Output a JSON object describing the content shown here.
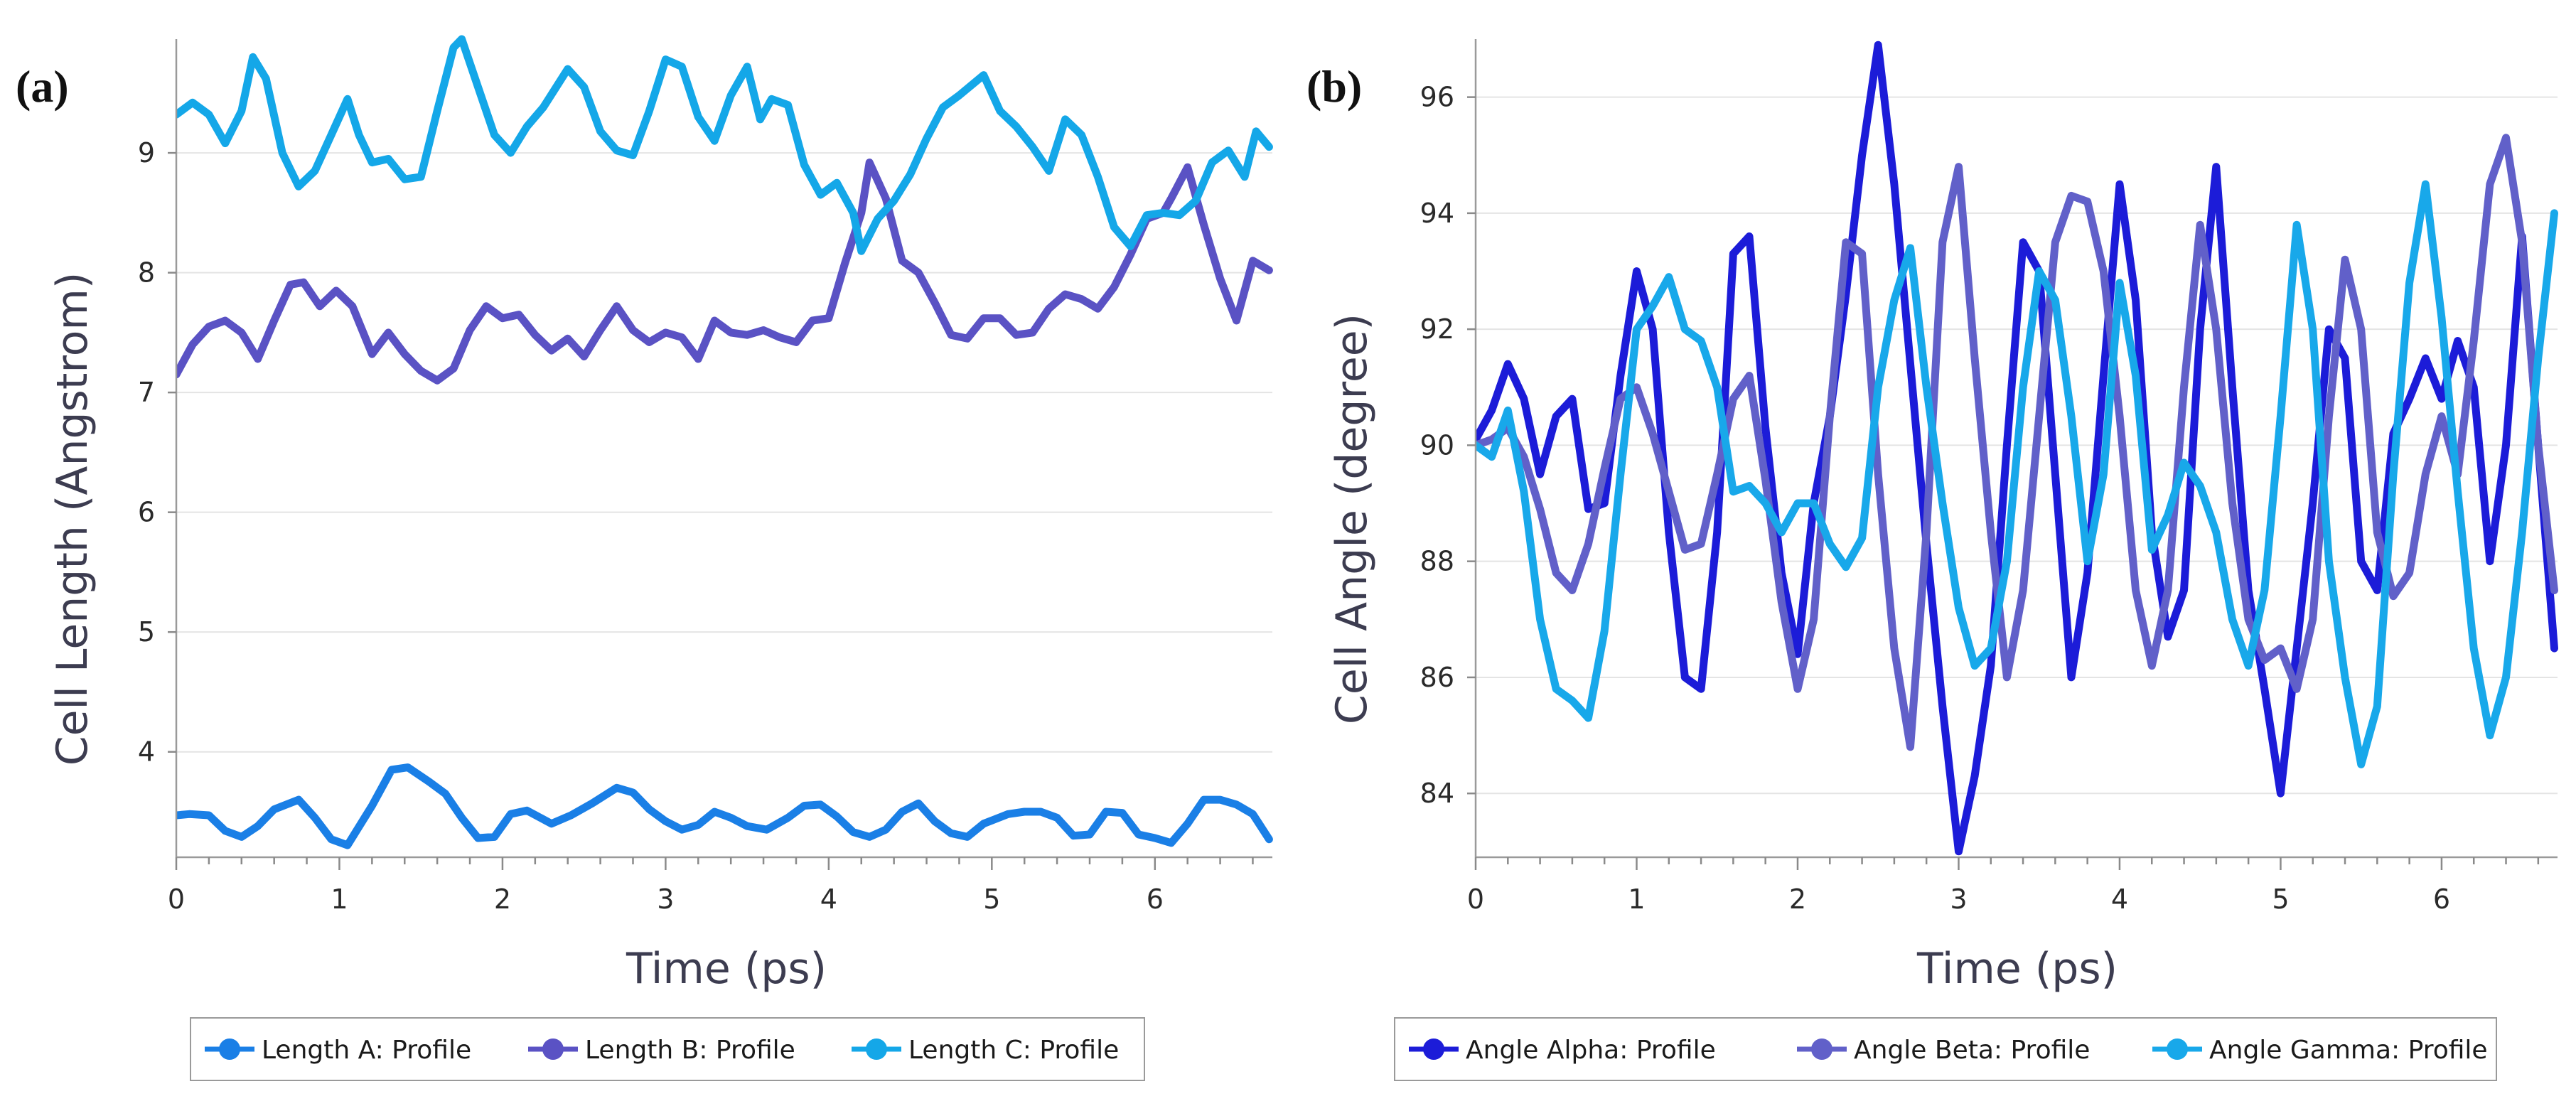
{
  "chart_data": [
    {
      "type": "line",
      "panel_label": "(a)",
      "xlabel": "Time (ps)",
      "ylabel": "Cell Length (Angstrom)",
      "xlim": [
        0,
        6.72
      ],
      "ylim": [
        3.12,
        9.95
      ],
      "xticks": [
        0,
        1,
        2,
        3,
        4,
        5,
        6
      ],
      "yticks": [
        4,
        5,
        6,
        7,
        8,
        9
      ],
      "grid": true,
      "legend_position": "bottom",
      "series": [
        {
          "name": "Length A: Profile",
          "color": "#1a7fe6",
          "x": [
            0,
            0.08,
            0.2,
            0.3,
            0.4,
            0.5,
            0.6,
            0.75,
            0.85,
            0.95,
            1.05,
            1.2,
            1.32,
            1.42,
            1.55,
            1.65,
            1.75,
            1.85,
            1.95,
            2.05,
            2.15,
            2.3,
            2.42,
            2.55,
            2.7,
            2.8,
            2.9,
            3.0,
            3.1,
            3.2,
            3.3,
            3.4,
            3.5,
            3.62,
            3.75,
            3.85,
            3.95,
            4.05,
            4.15,
            4.25,
            4.35,
            4.45,
            4.55,
            4.65,
            4.75,
            4.85,
            4.95,
            5.1,
            5.2,
            5.3,
            5.4,
            5.5,
            5.6,
            5.7,
            5.8,
            5.9,
            6.0,
            6.1,
            6.2,
            6.3,
            6.4,
            6.5,
            6.6,
            6.7
          ],
          "y": [
            3.47,
            3.48,
            3.47,
            3.34,
            3.29,
            3.38,
            3.52,
            3.6,
            3.45,
            3.27,
            3.22,
            3.55,
            3.85,
            3.87,
            3.75,
            3.65,
            3.45,
            3.28,
            3.29,
            3.48,
            3.51,
            3.4,
            3.47,
            3.57,
            3.7,
            3.66,
            3.52,
            3.42,
            3.35,
            3.39,
            3.5,
            3.45,
            3.38,
            3.35,
            3.45,
            3.55,
            3.56,
            3.46,
            3.33,
            3.29,
            3.35,
            3.5,
            3.57,
            3.42,
            3.32,
            3.29,
            3.4,
            3.48,
            3.5,
            3.5,
            3.45,
            3.3,
            3.31,
            3.5,
            3.49,
            3.31,
            3.28,
            3.24,
            3.4,
            3.6,
            3.6,
            3.56,
            3.48,
            3.27
          ]
        },
        {
          "name": "Length B: Profile",
          "color": "#5a52c4",
          "x": [
            0,
            0.1,
            0.2,
            0.3,
            0.4,
            0.5,
            0.6,
            0.7,
            0.78,
            0.88,
            0.98,
            1.08,
            1.2,
            1.3,
            1.4,
            1.5,
            1.6,
            1.7,
            1.8,
            1.9,
            2.0,
            2.1,
            2.2,
            2.3,
            2.4,
            2.5,
            2.6,
            2.7,
            2.8,
            2.9,
            3.0,
            3.1,
            3.2,
            3.3,
            3.4,
            3.5,
            3.6,
            3.7,
            3.8,
            3.9,
            4.0,
            4.1,
            4.2,
            4.25,
            4.35,
            4.45,
            4.55,
            4.65,
            4.75,
            4.85,
            4.95,
            5.05,
            5.15,
            5.25,
            5.35,
            5.45,
            5.55,
            5.65,
            5.75,
            5.85,
            5.95,
            6.05,
            6.1,
            6.2,
            6.3,
            6.4,
            6.5,
            6.6,
            6.7
          ],
          "y": [
            7.15,
            7.4,
            7.55,
            7.6,
            7.5,
            7.28,
            7.6,
            7.9,
            7.92,
            7.72,
            7.85,
            7.72,
            7.32,
            7.5,
            7.32,
            7.18,
            7.1,
            7.2,
            7.52,
            7.72,
            7.62,
            7.65,
            7.48,
            7.35,
            7.45,
            7.3,
            7.52,
            7.72,
            7.52,
            7.42,
            7.5,
            7.46,
            7.28,
            7.6,
            7.5,
            7.48,
            7.52,
            7.46,
            7.42,
            7.6,
            7.62,
            8.08,
            8.5,
            8.92,
            8.62,
            8.1,
            8.0,
            7.75,
            7.48,
            7.45,
            7.62,
            7.62,
            7.48,
            7.5,
            7.7,
            7.82,
            7.78,
            7.7,
            7.88,
            8.15,
            8.45,
            8.5,
            8.62,
            8.88,
            8.4,
            7.95,
            7.6,
            8.1,
            8.02
          ]
        },
        {
          "name": "Length C: Profile",
          "color": "#14a7e8",
          "x": [
            0,
            0.1,
            0.2,
            0.3,
            0.4,
            0.47,
            0.55,
            0.65,
            0.75,
            0.85,
            0.95,
            1.05,
            1.12,
            1.2,
            1.3,
            1.4,
            1.5,
            1.6,
            1.7,
            1.75,
            1.85,
            1.95,
            2.05,
            2.15,
            2.25,
            2.4,
            2.5,
            2.6,
            2.7,
            2.8,
            2.9,
            3.0,
            3.1,
            3.2,
            3.3,
            3.4,
            3.5,
            3.58,
            3.65,
            3.75,
            3.85,
            3.95,
            4.05,
            4.15,
            4.2,
            4.3,
            4.4,
            4.5,
            4.6,
            4.7,
            4.8,
            4.95,
            5.05,
            5.15,
            5.25,
            5.35,
            5.45,
            5.55,
            5.65,
            5.75,
            5.85,
            5.95,
            6.05,
            6.15,
            6.25,
            6.35,
            6.45,
            6.55,
            6.62,
            6.7
          ],
          "y": [
            9.32,
            9.42,
            9.32,
            9.08,
            9.35,
            9.8,
            9.62,
            9.0,
            8.72,
            8.85,
            9.15,
            9.45,
            9.15,
            8.92,
            8.95,
            8.78,
            8.8,
            9.35,
            9.88,
            9.95,
            9.55,
            9.15,
            9.0,
            9.22,
            9.38,
            9.7,
            9.55,
            9.18,
            9.02,
            8.98,
            9.35,
            9.78,
            9.72,
            9.3,
            9.1,
            9.48,
            9.72,
            9.28,
            9.45,
            9.4,
            8.9,
            8.65,
            8.75,
            8.5,
            8.18,
            8.45,
            8.6,
            8.82,
            9.12,
            9.38,
            9.48,
            9.65,
            9.35,
            9.22,
            9.05,
            8.85,
            9.28,
            9.15,
            8.8,
            8.38,
            8.22,
            8.48,
            8.5,
            8.48,
            8.6,
            8.92,
            9.02,
            8.8,
            9.18,
            9.05
          ]
        }
      ]
    },
    {
      "type": "line",
      "panel_label": "(b)",
      "xlabel": "Time (ps)",
      "ylabel": "Cell Angle (degree)",
      "xlim": [
        0,
        6.72
      ],
      "ylim": [
        82.9,
        97.0
      ],
      "xticks": [
        0,
        1,
        2,
        3,
        4,
        5,
        6
      ],
      "yticks": [
        84,
        86,
        88,
        90,
        92,
        94,
        96
      ],
      "grid": true,
      "legend_position": "bottom",
      "series": [
        {
          "name": "Angle Alpha: Profile",
          "color": "#1c1cd8",
          "x": [
            0,
            0.1,
            0.2,
            0.3,
            0.4,
            0.5,
            0.6,
            0.7,
            0.8,
            0.9,
            1.0,
            1.1,
            1.2,
            1.3,
            1.4,
            1.5,
            1.6,
            1.7,
            1.8,
            1.9,
            2.0,
            2.1,
            2.2,
            2.3,
            2.4,
            2.5,
            2.6,
            2.7,
            2.8,
            2.9,
            3.0,
            3.1,
            3.2,
            3.3,
            3.4,
            3.5,
            3.6,
            3.7,
            3.8,
            3.9,
            4.0,
            4.1,
            4.2,
            4.3,
            4.4,
            4.5,
            4.6,
            4.7,
            4.8,
            4.9,
            5.0,
            5.1,
            5.2,
            5.3,
            5.4,
            5.5,
            5.6,
            5.7,
            5.8,
            5.9,
            6.0,
            6.1,
            6.2,
            6.3,
            6.4,
            6.5,
            6.6,
            6.7
          ],
          "y": [
            90.1,
            90.6,
            91.4,
            90.8,
            89.5,
            90.5,
            90.8,
            88.9,
            89.0,
            91.2,
            93.0,
            92.0,
            88.5,
            86.0,
            85.8,
            88.5,
            93.3,
            93.6,
            90.3,
            87.8,
            86.4,
            89.0,
            90.5,
            92.6,
            95.0,
            96.9,
            94.5,
            91.4,
            88.3,
            85.5,
            83.0,
            84.3,
            86.2,
            90.0,
            93.5,
            93.0,
            89.5,
            86.0,
            87.8,
            91.2,
            94.5,
            92.5,
            88.5,
            86.7,
            87.5,
            92.0,
            94.8,
            91.0,
            87.5,
            85.8,
            84.0,
            86.5,
            89.0,
            92.0,
            91.5,
            88.0,
            87.5,
            90.2,
            90.8,
            91.5,
            90.8,
            91.8,
            91.0,
            88.0,
            90.0,
            93.6,
            90.0,
            86.5
          ]
        },
        {
          "name": "Angle Beta: Profile",
          "color": "#6160c9",
          "x": [
            0,
            0.1,
            0.2,
            0.3,
            0.4,
            0.5,
            0.6,
            0.7,
            0.8,
            0.9,
            1.0,
            1.1,
            1.2,
            1.3,
            1.4,
            1.5,
            1.6,
            1.7,
            1.8,
            1.9,
            2.0,
            2.1,
            2.2,
            2.3,
            2.4,
            2.5,
            2.6,
            2.7,
            2.8,
            2.9,
            3.0,
            3.1,
            3.2,
            3.3,
            3.4,
            3.5,
            3.6,
            3.7,
            3.8,
            3.9,
            4.0,
            4.1,
            4.2,
            4.3,
            4.4,
            4.5,
            4.6,
            4.7,
            4.8,
            4.9,
            5.0,
            5.1,
            5.2,
            5.3,
            5.4,
            5.5,
            5.6,
            5.7,
            5.8,
            5.9,
            6.0,
            6.1,
            6.2,
            6.3,
            6.4,
            6.5,
            6.6,
            6.7
          ],
          "y": [
            90.0,
            90.1,
            90.3,
            89.8,
            88.9,
            87.8,
            87.5,
            88.3,
            89.6,
            90.8,
            91.0,
            90.2,
            89.2,
            88.2,
            88.3,
            89.5,
            90.8,
            91.2,
            89.4,
            87.3,
            85.8,
            87.0,
            90.5,
            93.5,
            93.3,
            89.5,
            86.5,
            84.8,
            88.5,
            93.5,
            94.8,
            91.5,
            88.5,
            86.0,
            87.5,
            90.5,
            93.5,
            94.3,
            94.2,
            93.0,
            90.5,
            87.5,
            86.2,
            87.5,
            91.0,
            93.8,
            92.0,
            89.0,
            87.0,
            86.3,
            86.5,
            85.8,
            87.0,
            90.5,
            93.2,
            92.0,
            88.5,
            87.4,
            87.8,
            89.5,
            90.5,
            89.5,
            91.8,
            94.5,
            95.3,
            93.5,
            90.0,
            87.5
          ]
        },
        {
          "name": "Angle Gamma: Profile",
          "color": "#18a8ea",
          "x": [
            0,
            0.1,
            0.2,
            0.3,
            0.4,
            0.5,
            0.6,
            0.7,
            0.8,
            0.9,
            1.0,
            1.1,
            1.2,
            1.3,
            1.4,
            1.5,
            1.6,
            1.7,
            1.8,
            1.9,
            2.0,
            2.1,
            2.2,
            2.3,
            2.4,
            2.5,
            2.6,
            2.7,
            2.8,
            2.9,
            3.0,
            3.1,
            3.2,
            3.3,
            3.4,
            3.5,
            3.6,
            3.7,
            3.8,
            3.9,
            4.0,
            4.1,
            4.2,
            4.3,
            4.4,
            4.5,
            4.6,
            4.7,
            4.8,
            4.9,
            5.0,
            5.1,
            5.2,
            5.3,
            5.4,
            5.5,
            5.6,
            5.7,
            5.8,
            5.9,
            6.0,
            6.1,
            6.2,
            6.3,
            6.4,
            6.5,
            6.6,
            6.7
          ],
          "y": [
            90.0,
            89.8,
            90.6,
            89.2,
            87.0,
            85.8,
            85.6,
            85.3,
            86.8,
            89.5,
            92.0,
            92.4,
            92.9,
            92.0,
            91.8,
            91.0,
            89.2,
            89.3,
            89.0,
            88.5,
            89.0,
            89.0,
            88.3,
            87.9,
            88.4,
            91.0,
            92.5,
            93.4,
            91.0,
            89.0,
            87.2,
            86.2,
            86.5,
            88.0,
            91.0,
            93.0,
            92.5,
            90.5,
            88.0,
            89.5,
            92.8,
            91.2,
            88.2,
            88.8,
            89.7,
            89.3,
            88.5,
            87.0,
            86.2,
            87.5,
            90.5,
            93.8,
            92.0,
            88.0,
            86.0,
            84.5,
            85.5,
            89.5,
            92.8,
            94.5,
            92.2,
            89.2,
            86.5,
            85.0,
            86.0,
            88.5,
            91.5,
            94.0
          ]
        }
      ]
    }
  ]
}
